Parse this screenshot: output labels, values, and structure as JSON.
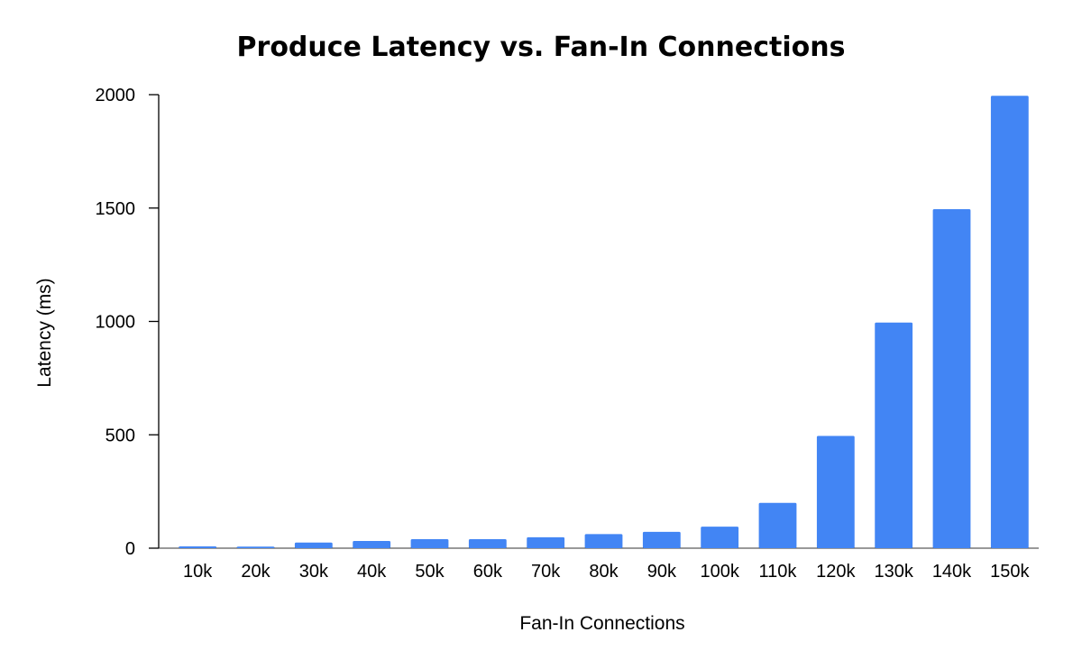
{
  "chart_data": {
    "type": "bar",
    "title": "Produce Latency vs. Fan-In Connections",
    "xlabel": "Fan-In Connections",
    "ylabel": "Latency (ms)",
    "categories": [
      "10k",
      "20k",
      "30k",
      "40k",
      "50k",
      "60k",
      "70k",
      "80k",
      "90k",
      "100k",
      "110k",
      "120k",
      "130k",
      "140k",
      "150k"
    ],
    "values": [
      8,
      7,
      25,
      32,
      40,
      40,
      48,
      62,
      72,
      95,
      200,
      495,
      995,
      1495,
      1995
    ],
    "ylim": [
      0,
      2000
    ],
    "yticks": [
      "0",
      "500",
      "1000",
      "1500",
      "2000"
    ],
    "grid": false,
    "legend": "none",
    "colors": {
      "bar": "#4285f4",
      "axis": "#000000",
      "text": "#000000"
    }
  }
}
